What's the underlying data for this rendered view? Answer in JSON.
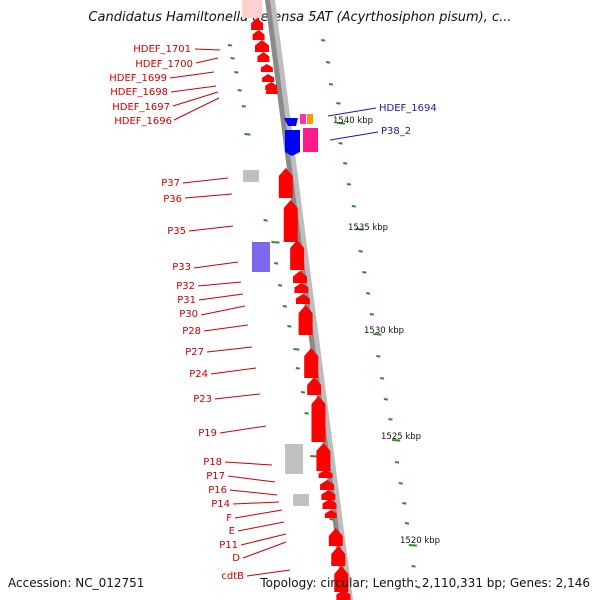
{
  "title": "Candidatus Hamiltonella defensa 5AT (Acyrthosiphon pisum), c...",
  "accession": "Accession: NC_012751",
  "summary": "Topology: circular; Length: 2,110,331 bp; Genes: 2,146",
  "colors": {
    "backbone": "#8a8a8a",
    "forward_gene": "#ff0000",
    "reverse_gene": "#0000ff",
    "hypothetical": "#c0c0c0",
    "rna": "#7b68ee",
    "tick": "#2e8b2e",
    "label_red": "#cc0000",
    "label_blue": "#1a1aa6"
  },
  "scale_labels": [
    "1540 kbp",
    "1535 kbp",
    "1530 kbp",
    "1525 kbp",
    "1520 kbp"
  ],
  "left_labels": [
    "HDEF_1701",
    "HDEF_1700",
    "HDEF_1699",
    "HDEF_1698",
    "HDEF_1697",
    "HDEF_1696",
    "P37",
    "P36",
    "P35",
    "P33",
    "P32",
    "P31",
    "P30",
    "P28",
    "P27",
    "P24",
    "P23",
    "P19",
    "P18",
    "P17",
    "P16",
    "P14",
    "F",
    "E",
    "P11",
    "D",
    "cdtB"
  ],
  "right_labels": [
    "HDEF_1694",
    "P38_2"
  ]
}
